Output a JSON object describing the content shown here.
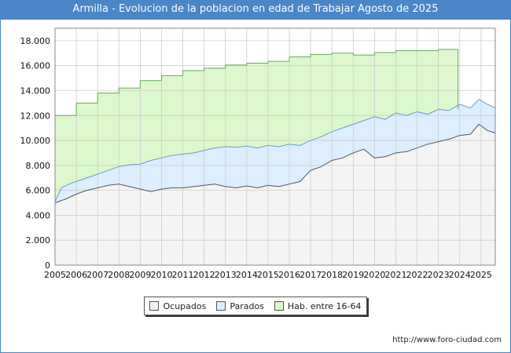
{
  "title": "Armilla - Evolucion de la poblacion en edad de Trabajar Agosto de 2025",
  "source": "http://www.foro-ciudad.com",
  "watermark": "FORO-CIUDAD.COM",
  "colors": {
    "ocupados_fill": "#f4f4f4",
    "ocupados_line": "#555555",
    "parados_fill": "#ddeeff",
    "parados_line": "#6699cc",
    "hab_fill": "#ddf8cc",
    "hab_line": "#66aa55",
    "grid": "#cccccc",
    "title_bg": "#4a86c8"
  },
  "legend": [
    {
      "label": "Ocupados",
      "color": "#f4f4f4"
    },
    {
      "label": "Parados",
      "color": "#ddeeff"
    },
    {
      "label": "Hab. entre 16-64",
      "color": "#ddf8cc"
    }
  ],
  "chart_data": {
    "type": "area",
    "title": "Armilla - Evolucion de la poblacion en edad de Trabajar Agosto de 2025",
    "x_labels": [
      "2005",
      "2006",
      "2007",
      "2008",
      "2009",
      "2010",
      "2011",
      "2012",
      "2013",
      "2014",
      "2015",
      "2016",
      "2017",
      "2018",
      "2019",
      "2020",
      "2021",
      "2022",
      "2023",
      "2024",
      "2025"
    ],
    "y_ticks": [
      "0",
      "2.000",
      "4.000",
      "6.000",
      "8.000",
      "10.000",
      "12.000",
      "14.000",
      "16.000",
      "18.000"
    ],
    "xlim": [
      2005,
      2025.67
    ],
    "ylim": [
      0,
      19000
    ],
    "grid": true,
    "legend_position": "bottom",
    "series": [
      {
        "name": "Hab. entre 16-64",
        "points": [
          [
            2005,
            12000
          ],
          [
            2006,
            13000
          ],
          [
            2007,
            13800
          ],
          [
            2008,
            14200
          ],
          [
            2009,
            14800
          ],
          [
            2010,
            15200
          ],
          [
            2011,
            15600
          ],
          [
            2012,
            15800
          ],
          [
            2013,
            16050
          ],
          [
            2014,
            16200
          ],
          [
            2015,
            16350
          ],
          [
            2016,
            16700
          ],
          [
            2017,
            16900
          ],
          [
            2018,
            17000
          ],
          [
            2019,
            16850
          ],
          [
            2020,
            17050
          ],
          [
            2021,
            17200
          ],
          [
            2022,
            17200
          ],
          [
            2023,
            17300
          ],
          [
            2023.92,
            17300
          ]
        ]
      },
      {
        "name": "Parados",
        "points": [
          [
            2005,
            5100
          ],
          [
            2005.3,
            6200
          ],
          [
            2005.8,
            6600
          ],
          [
            2006.5,
            7000
          ],
          [
            2007,
            7300
          ],
          [
            2007.5,
            7600
          ],
          [
            2008,
            7900
          ],
          [
            2008.5,
            8050
          ],
          [
            2009,
            8100
          ],
          [
            2009.5,
            8400
          ],
          [
            2010,
            8600
          ],
          [
            2010.5,
            8800
          ],
          [
            2011,
            8900
          ],
          [
            2011.5,
            9000
          ],
          [
            2012,
            9200
          ],
          [
            2012.5,
            9400
          ],
          [
            2013,
            9500
          ],
          [
            2013.5,
            9450
          ],
          [
            2014,
            9550
          ],
          [
            2014.5,
            9400
          ],
          [
            2015,
            9600
          ],
          [
            2015.5,
            9500
          ],
          [
            2016,
            9700
          ],
          [
            2016.5,
            9600
          ],
          [
            2017,
            10000
          ],
          [
            2017.5,
            10300
          ],
          [
            2018,
            10700
          ],
          [
            2018.5,
            11000
          ],
          [
            2019,
            11300
          ],
          [
            2019.5,
            11600
          ],
          [
            2020,
            11900
          ],
          [
            2020.5,
            11700
          ],
          [
            2021,
            12200
          ],
          [
            2021.5,
            12000
          ],
          [
            2022,
            12300
          ],
          [
            2022.5,
            12100
          ],
          [
            2023,
            12500
          ],
          [
            2023.5,
            12400
          ],
          [
            2024,
            12900
          ],
          [
            2024.5,
            12600
          ],
          [
            2024.9,
            13300
          ],
          [
            2025.3,
            12900
          ],
          [
            2025.67,
            12600
          ]
        ]
      },
      {
        "name": "Ocupados",
        "points": [
          [
            2005,
            5000
          ],
          [
            2005.5,
            5300
          ],
          [
            2006,
            5700
          ],
          [
            2006.5,
            6000
          ],
          [
            2007,
            6200
          ],
          [
            2007.5,
            6400
          ],
          [
            2008,
            6500
          ],
          [
            2008.5,
            6300
          ],
          [
            2009,
            6100
          ],
          [
            2009.5,
            5900
          ],
          [
            2010,
            6100
          ],
          [
            2010.5,
            6200
          ],
          [
            2011,
            6200
          ],
          [
            2011.5,
            6300
          ],
          [
            2012,
            6400
          ],
          [
            2012.5,
            6500
          ],
          [
            2013,
            6300
          ],
          [
            2013.5,
            6200
          ],
          [
            2014,
            6350
          ],
          [
            2014.5,
            6200
          ],
          [
            2015,
            6400
          ],
          [
            2015.5,
            6300
          ],
          [
            2016,
            6500
          ],
          [
            2016.5,
            6700
          ],
          [
            2017,
            7600
          ],
          [
            2017.5,
            7900
          ],
          [
            2018,
            8400
          ],
          [
            2018.5,
            8600
          ],
          [
            2019,
            9000
          ],
          [
            2019.5,
            9300
          ],
          [
            2020,
            8600
          ],
          [
            2020.5,
            8700
          ],
          [
            2021,
            9000
          ],
          [
            2021.5,
            9100
          ],
          [
            2022,
            9400
          ],
          [
            2022.5,
            9700
          ],
          [
            2023,
            9900
          ],
          [
            2023.5,
            10100
          ],
          [
            2024,
            10400
          ],
          [
            2024.5,
            10500
          ],
          [
            2024.9,
            11300
          ],
          [
            2025.3,
            10800
          ],
          [
            2025.67,
            10600
          ]
        ]
      }
    ]
  }
}
